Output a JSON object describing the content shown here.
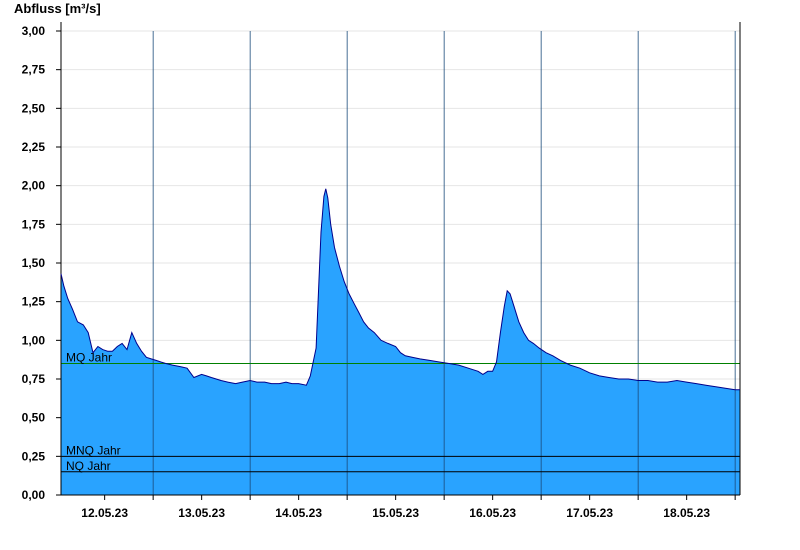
{
  "chart_data": {
    "type": "area",
    "ylabel": "Abfluss [m³/s]",
    "ylim": [
      0,
      3.0
    ],
    "yticks": [
      "0,00",
      "0,25",
      "0,50",
      "0,75",
      "1,00",
      "1,25",
      "1,50",
      "1,75",
      "2,00",
      "2,25",
      "2,50",
      "2,75",
      "3,00"
    ],
    "xlim_days": [
      11.55,
      18.55
    ],
    "xticks": [
      {
        "label": "12.05.23",
        "day": 12.0
      },
      {
        "label": "13.05.23",
        "day": 13.0
      },
      {
        "label": "14.05.23",
        "day": 14.0
      },
      {
        "label": "15.05.23",
        "day": 15.0
      },
      {
        "label": "16.05.23",
        "day": 16.0
      },
      {
        "label": "17.05.23",
        "day": 17.0
      },
      {
        "label": "18.05.23",
        "day": 18.0
      }
    ],
    "grid_y": true,
    "fill_color": "#29a3ff",
    "line_color": "#00008b",
    "reference_lines": [
      {
        "label": "MQ Jahr",
        "value": 0.85,
        "color": "#008000"
      },
      {
        "label": "MNQ Jahr",
        "value": 0.25,
        "color": "#000000"
      },
      {
        "label": "NQ Jahr",
        "value": 0.15,
        "color": "#000000"
      }
    ],
    "series": [
      {
        "x": [
          11.55,
          11.58,
          11.62,
          11.67,
          11.72,
          11.78,
          11.83,
          11.88,
          11.93,
          11.98,
          12.03,
          12.08,
          12.13,
          12.18,
          12.23,
          12.28,
          12.33,
          12.38,
          12.43,
          12.48,
          12.53,
          12.58,
          12.63,
          12.7,
          12.78,
          12.85,
          12.92,
          13.0,
          13.05,
          13.1,
          13.15,
          13.2,
          13.27,
          13.35,
          13.42,
          13.5,
          13.57,
          13.65,
          13.72,
          13.8,
          13.87,
          13.93,
          14.0,
          14.08,
          14.12,
          14.18,
          14.23,
          14.26,
          14.28,
          14.3,
          14.33,
          14.37,
          14.42,
          14.47,
          14.52,
          14.57,
          14.62,
          14.67,
          14.72,
          14.78,
          14.85,
          14.92,
          15.0,
          15.05,
          15.1,
          15.17,
          15.25,
          15.35,
          15.45,
          15.55,
          15.65,
          15.75,
          15.85,
          15.9,
          15.95,
          16.0,
          16.04,
          16.08,
          16.12,
          16.15,
          16.18,
          16.22,
          16.27,
          16.32,
          16.37,
          16.42,
          16.48,
          16.55,
          16.62,
          16.7,
          16.8,
          16.9,
          17.0,
          17.1,
          17.2,
          17.3,
          17.4,
          17.5,
          17.6,
          17.7,
          17.8,
          17.9,
          18.0,
          18.1,
          18.2,
          18.3,
          18.4,
          18.5,
          18.55
        ],
        "y": [
          1.43,
          1.35,
          1.27,
          1.2,
          1.12,
          1.1,
          1.05,
          0.92,
          0.96,
          0.94,
          0.93,
          0.93,
          0.96,
          0.98,
          0.94,
          1.05,
          0.98,
          0.93,
          0.89,
          0.88,
          0.87,
          0.86,
          0.85,
          0.84,
          0.83,
          0.82,
          0.76,
          0.78,
          0.77,
          0.76,
          0.75,
          0.74,
          0.73,
          0.72,
          0.73,
          0.74,
          0.73,
          0.73,
          0.72,
          0.72,
          0.73,
          0.72,
          0.72,
          0.71,
          0.77,
          0.95,
          1.7,
          1.93,
          1.98,
          1.92,
          1.75,
          1.6,
          1.48,
          1.38,
          1.3,
          1.24,
          1.18,
          1.12,
          1.08,
          1.05,
          1.0,
          0.98,
          0.96,
          0.92,
          0.9,
          0.89,
          0.88,
          0.87,
          0.86,
          0.85,
          0.84,
          0.82,
          0.8,
          0.78,
          0.8,
          0.8,
          0.86,
          1.05,
          1.22,
          1.32,
          1.3,
          1.22,
          1.12,
          1.05,
          1.0,
          0.98,
          0.95,
          0.92,
          0.9,
          0.87,
          0.84,
          0.82,
          0.79,
          0.77,
          0.76,
          0.75,
          0.75,
          0.74,
          0.74,
          0.73,
          0.73,
          0.74,
          0.73,
          0.72,
          0.71,
          0.7,
          0.69,
          0.68,
          0.68
        ]
      }
    ]
  }
}
